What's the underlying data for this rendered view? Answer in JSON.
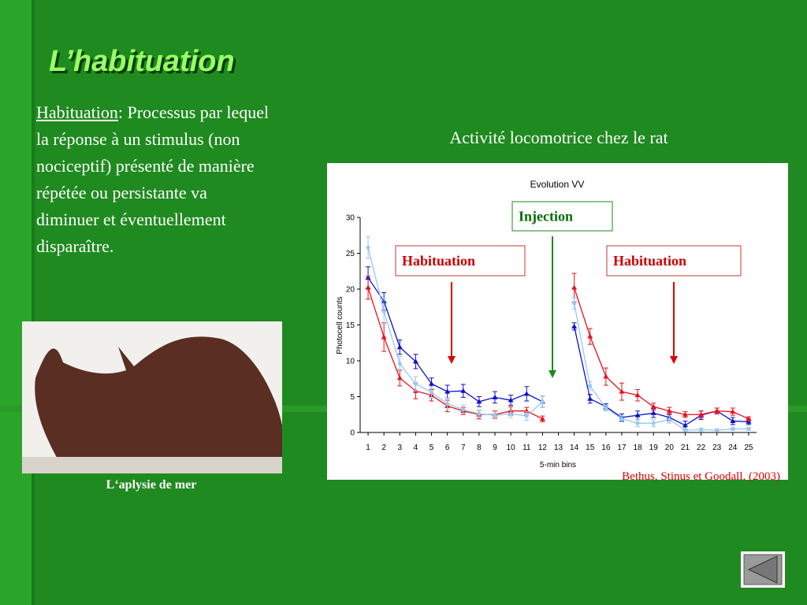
{
  "title": "L’habituation",
  "definition": {
    "term": "Habituation",
    "text": ": Processus par lequel la réponse à un stimulus (non nociceptif) présenté de manière répétée ou persistante va diminuer et éventuellement disparaître."
  },
  "chart_caption": "Activité locomotrice chez le rat",
  "image_caption": "L‘aplysie de mer",
  "citation": "Bethus, Stinus et Goodall. (2003)",
  "chart_data": {
    "type": "line",
    "title": "Evolution VV",
    "x_label": "5-min bins",
    "y_label": "Photocell counts",
    "x": [
      1,
      2,
      3,
      4,
      5,
      6,
      7,
      8,
      9,
      10,
      11,
      12,
      13,
      14,
      15,
      16,
      17,
      18,
      19,
      20,
      21,
      22,
      23,
      24,
      25
    ],
    "xlim": [
      0.5,
      25.5
    ],
    "xticks": [
      1,
      2,
      3,
      4,
      5,
      6,
      7,
      8,
      9,
      10,
      11,
      12,
      13,
      14,
      15,
      16,
      17,
      18,
      19,
      20,
      21,
      22,
      23,
      24,
      25
    ],
    "ylim": [
      0,
      30
    ],
    "yticks": [
      0,
      5,
      10,
      15,
      20,
      25,
      30
    ],
    "annotations": [
      "Injection",
      "Habituation",
      "Habituation"
    ],
    "series": [
      {
        "color": "#1010c8",
        "marker": "triangle",
        "values": [
          21.6,
          18.3,
          11.9,
          9.9,
          6.8,
          5.7,
          5.8,
          4.3,
          4.9,
          4.5,
          5.4,
          4.3,
          null,
          14.8,
          4.7,
          3.6,
          2.1,
          2.4,
          2.7,
          2.1,
          1.0,
          2.4,
          3.0,
          1.6,
          1.5
        ],
        "errors": [
          1.5,
          1.2,
          1,
          1,
          0.8,
          0.9,
          0.9,
          0.7,
          0.8,
          0.7,
          1,
          0.8,
          null,
          0.5,
          0.6,
          0.4,
          0.5,
          0.6,
          0.6,
          0.5,
          0.6,
          0.6,
          0.4,
          0.5,
          0.4
        ]
      },
      {
        "color": "#e8101c",
        "marker": "triangle",
        "values": [
          20.2,
          13.3,
          7.6,
          5.8,
          5.2,
          3.7,
          3.0,
          2.5,
          2.5,
          3.0,
          3.0,
          1.9,
          null,
          20.2,
          13.4,
          7.8,
          5.7,
          5.2,
          3.6,
          3.0,
          2.5,
          2.5,
          3.0,
          2.9,
          1.9
        ],
        "errors": [
          1.6,
          2,
          1.1,
          1.1,
          0.8,
          0.8,
          0.5,
          0.6,
          0.5,
          0.6,
          0.5,
          0.4,
          null,
          2,
          1.1,
          1.2,
          1.2,
          0.8,
          0.5,
          0.5,
          0.4,
          0.5,
          0.4,
          0.5,
          0.3
        ]
      },
      {
        "color": "#99c8ee",
        "marker": "circle",
        "values": [
          25.8,
          16.9,
          9.6,
          6.8,
          5.6,
          4.0,
          3.2,
          2.6,
          2.4,
          2.6,
          2.3,
          4.3,
          null,
          18.0,
          6.5,
          3.4,
          1.9,
          1.3,
          1.3,
          1.8,
          0.3,
          0.4,
          0.3,
          0.5,
          0.5
        ],
        "errors": [
          1.5,
          1.8,
          1,
          1,
          0.8,
          0.8,
          0.6,
          0.5,
          0.5,
          0.5,
          0.6,
          0.8,
          null,
          0.8,
          0.6,
          0.4,
          0.4,
          0.5,
          0.5,
          0.5,
          0.2,
          0.2,
          0.2,
          0.2,
          0.2
        ]
      }
    ]
  }
}
